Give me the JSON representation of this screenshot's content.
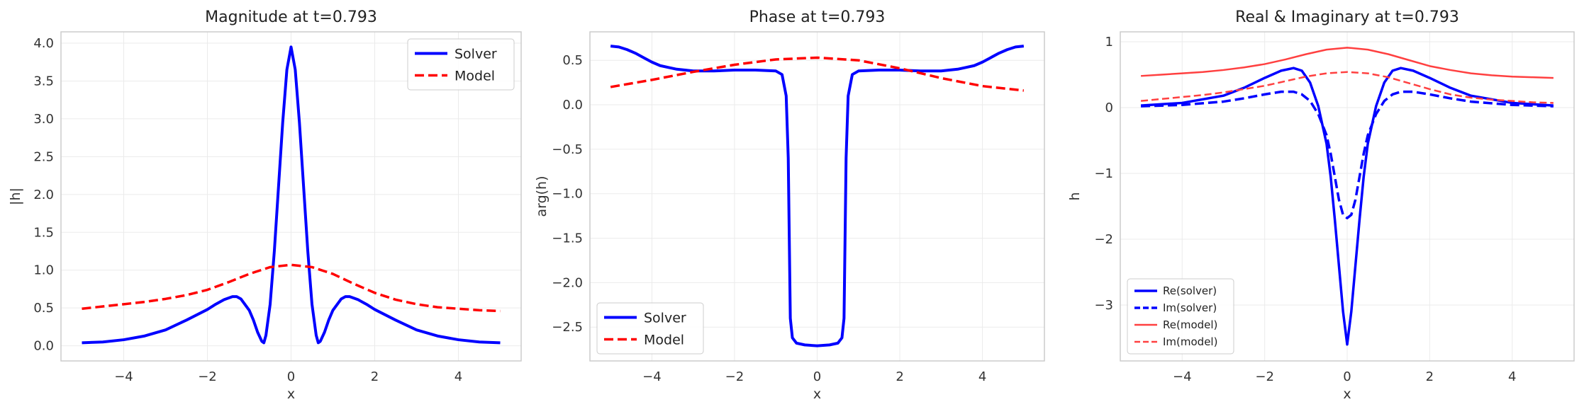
{
  "colors": {
    "solver": "#0000ff",
    "model": "#ff0000",
    "model_light": "#ff4040",
    "grid": "#ebebeb",
    "frame": "#cccccc"
  },
  "chart_data": [
    {
      "type": "line",
      "title": "Magnitude at t=0.793",
      "xlabel": "x",
      "ylabel": "|h|",
      "xlim": [
        -5.5,
        5.5
      ],
      "ylim": [
        -0.2,
        4.15
      ],
      "xticks": [
        -4,
        -2,
        0,
        2,
        4
      ],
      "xtick_labels": [
        "−4",
        "−2",
        "0",
        "2",
        "4"
      ],
      "yticks": [
        0.0,
        0.5,
        1.0,
        1.5,
        2.0,
        2.5,
        3.0,
        3.5,
        4.0
      ],
      "ytick_labels": [
        "0.0",
        "0.5",
        "1.0",
        "1.5",
        "2.0",
        "2.5",
        "3.0",
        "3.5",
        "4.0"
      ],
      "grid": true,
      "legend": "top-right",
      "series": [
        {
          "name": "Solver",
          "style": "solid",
          "width": 4,
          "x": [
            -5,
            -4.5,
            -4,
            -3.5,
            -3,
            -2.5,
            -2,
            -1.8,
            -1.6,
            -1.4,
            -1.3,
            -1.2,
            -1.0,
            -0.9,
            -0.8,
            -0.7,
            -0.65,
            -0.6,
            -0.5,
            -0.4,
            -0.3,
            -0.2,
            -0.1,
            0,
            0.1,
            0.2,
            0.3,
            0.4,
            0.5,
            0.6,
            0.65,
            0.7,
            0.8,
            0.9,
            1.0,
            1.2,
            1.3,
            1.4,
            1.6,
            1.8,
            2,
            2.5,
            3,
            3.5,
            4,
            4.5,
            5
          ],
          "y": [
            0.04,
            0.05,
            0.08,
            0.13,
            0.21,
            0.34,
            0.48,
            0.55,
            0.61,
            0.65,
            0.65,
            0.62,
            0.47,
            0.34,
            0.18,
            0.06,
            0.04,
            0.14,
            0.55,
            1.25,
            2.1,
            2.95,
            3.65,
            3.95,
            3.65,
            2.95,
            2.1,
            1.25,
            0.55,
            0.14,
            0.04,
            0.06,
            0.18,
            0.34,
            0.47,
            0.62,
            0.65,
            0.65,
            0.61,
            0.55,
            0.48,
            0.34,
            0.21,
            0.13,
            0.08,
            0.05,
            0.04
          ]
        },
        {
          "name": "Model",
          "style": "dashed",
          "width": 3.5,
          "x": [
            -5,
            -4.5,
            -4,
            -3.5,
            -3,
            -2.5,
            -2,
            -1.5,
            -1,
            -0.5,
            0,
            0.5,
            1,
            1.5,
            2,
            2.5,
            3,
            3.5,
            4,
            4.5,
            5
          ],
          "y": [
            0.49,
            0.52,
            0.55,
            0.58,
            0.62,
            0.67,
            0.74,
            0.84,
            0.95,
            1.04,
            1.07,
            1.04,
            0.95,
            0.82,
            0.7,
            0.61,
            0.55,
            0.51,
            0.49,
            0.47,
            0.46
          ]
        }
      ]
    },
    {
      "type": "line",
      "title": "Phase at t=0.793",
      "xlabel": "x",
      "ylabel": "arg(h)",
      "xlim": [
        -5.5,
        5.5
      ],
      "ylim": [
        -2.88,
        0.82
      ],
      "xticks": [
        -4,
        -2,
        0,
        2,
        4
      ],
      "xtick_labels": [
        "−4",
        "−2",
        "0",
        "2",
        "4"
      ],
      "yticks": [
        -2.5,
        -2.0,
        -1.5,
        -1.0,
        -0.5,
        0.0,
        0.5
      ],
      "ytick_labels": [
        "−2.5",
        "−2.0",
        "−1.5",
        "−1.0",
        "−0.5",
        "0.0",
        "0.5"
      ],
      "grid": true,
      "legend": "bottom-left",
      "series": [
        {
          "name": "Solver",
          "style": "solid",
          "width": 4,
          "x": [
            -5,
            -4.8,
            -4.6,
            -4.4,
            -4.2,
            -4,
            -3.8,
            -3.6,
            -3.4,
            -3.2,
            -3,
            -2.5,
            -2,
            -1.5,
            -1,
            -0.85,
            -0.75,
            -0.7,
            -0.65,
            -0.6,
            -0.5,
            -0.3,
            0,
            0.3,
            0.5,
            0.6,
            0.65,
            0.7,
            0.75,
            0.85,
            1,
            1.5,
            2,
            2.5,
            3,
            3.2,
            3.4,
            3.6,
            3.8,
            4,
            4.2,
            4.4,
            4.6,
            4.8,
            5
          ],
          "y": [
            0.66,
            0.65,
            0.62,
            0.58,
            0.53,
            0.48,
            0.44,
            0.42,
            0.4,
            0.39,
            0.38,
            0.38,
            0.39,
            0.39,
            0.38,
            0.34,
            0.1,
            -0.6,
            -2.4,
            -2.62,
            -2.68,
            -2.7,
            -2.71,
            -2.7,
            -2.68,
            -2.62,
            -2.4,
            -0.6,
            0.1,
            0.34,
            0.38,
            0.39,
            0.39,
            0.38,
            0.38,
            0.39,
            0.4,
            0.42,
            0.44,
            0.48,
            0.53,
            0.58,
            0.62,
            0.65,
            0.66
          ]
        },
        {
          "name": "Model",
          "style": "dashed",
          "width": 3.5,
          "x": [
            -5,
            -4,
            -3,
            -2,
            -1,
            0,
            1,
            2,
            3,
            4,
            5
          ],
          "y": [
            0.2,
            0.28,
            0.37,
            0.45,
            0.51,
            0.53,
            0.5,
            0.41,
            0.3,
            0.21,
            0.16
          ]
        }
      ]
    },
    {
      "type": "line",
      "title": "Real & Imaginary at t=0.793",
      "xlabel": "x",
      "ylabel": "h",
      "xlim": [
        -5.5,
        5.5
      ],
      "ylim": [
        -3.85,
        1.15
      ],
      "xticks": [
        -4,
        -2,
        0,
        2,
        4
      ],
      "xtick_labels": [
        "−4",
        "−2",
        "0",
        "2",
        "4"
      ],
      "yticks": [
        -3,
        -2,
        -1,
        0,
        1
      ],
      "ytick_labels": [
        "−3",
        "−2",
        "−1",
        "0",
        "1"
      ],
      "grid": true,
      "legend": "bottom-left",
      "series": [
        {
          "name": "Re(solver)",
          "style": "solid",
          "width": 3.5,
          "x": [
            -5,
            -4,
            -3,
            -2.5,
            -2,
            -1.6,
            -1.3,
            -1.1,
            -0.9,
            -0.7,
            -0.5,
            -0.4,
            -0.3,
            -0.2,
            -0.1,
            0,
            0.1,
            0.2,
            0.3,
            0.4,
            0.5,
            0.7,
            0.9,
            1.1,
            1.3,
            1.6,
            2,
            2.5,
            3,
            4,
            5
          ],
          "y": [
            0.03,
            0.07,
            0.18,
            0.3,
            0.45,
            0.56,
            0.6,
            0.56,
            0.38,
            0.02,
            -0.55,
            -1.05,
            -1.7,
            -2.4,
            -3.1,
            -3.6,
            -3.1,
            -2.4,
            -1.7,
            -1.05,
            -0.55,
            0.02,
            0.38,
            0.56,
            0.6,
            0.56,
            0.45,
            0.3,
            0.18,
            0.07,
            0.03
          ]
        },
        {
          "name": "Im(solver)",
          "style": "dashed",
          "width": 3.5,
          "x": [
            -5,
            -4,
            -3,
            -2.5,
            -2,
            -1.6,
            -1.3,
            -1.1,
            -0.9,
            -0.7,
            -0.5,
            -0.4,
            -0.3,
            -0.2,
            -0.1,
            0,
            0.1,
            0.2,
            0.3,
            0.4,
            0.5,
            0.7,
            0.9,
            1.1,
            1.3,
            1.6,
            2,
            2.5,
            3,
            4,
            5
          ],
          "y": [
            0.02,
            0.04,
            0.09,
            0.14,
            0.2,
            0.24,
            0.24,
            0.2,
            0.1,
            -0.1,
            -0.42,
            -0.7,
            -1.05,
            -1.4,
            -1.63,
            -1.68,
            -1.63,
            -1.4,
            -1.05,
            -0.7,
            -0.42,
            -0.1,
            0.1,
            0.2,
            0.24,
            0.24,
            0.2,
            0.14,
            0.09,
            0.04,
            0.02
          ]
        },
        {
          "name": "Re(model)",
          "style": "solid",
          "width": 2.5,
          "x": [
            -5,
            -4.5,
            -4,
            -3.5,
            -3,
            -2.5,
            -2,
            -1.5,
            -1,
            -0.5,
            0,
            0.5,
            1,
            1.5,
            2,
            2.5,
            3,
            3.5,
            4,
            4.5,
            5
          ],
          "y": [
            0.48,
            0.5,
            0.52,
            0.54,
            0.57,
            0.61,
            0.66,
            0.73,
            0.81,
            0.88,
            0.91,
            0.88,
            0.81,
            0.72,
            0.63,
            0.57,
            0.52,
            0.49,
            0.47,
            0.46,
            0.45
          ]
        },
        {
          "name": "Im(model)",
          "style": "dashed",
          "width": 2.5,
          "x": [
            -5,
            -4.5,
            -4,
            -3.5,
            -3,
            -2.5,
            -2,
            -1.5,
            -1,
            -0.5,
            0,
            0.5,
            1,
            1.5,
            2,
            2.5,
            3,
            3.5,
            4,
            4.5,
            5
          ],
          "y": [
            0.1,
            0.13,
            0.16,
            0.19,
            0.23,
            0.28,
            0.33,
            0.4,
            0.47,
            0.52,
            0.54,
            0.52,
            0.46,
            0.37,
            0.28,
            0.2,
            0.15,
            0.12,
            0.1,
            0.08,
            0.07
          ]
        }
      ]
    }
  ]
}
